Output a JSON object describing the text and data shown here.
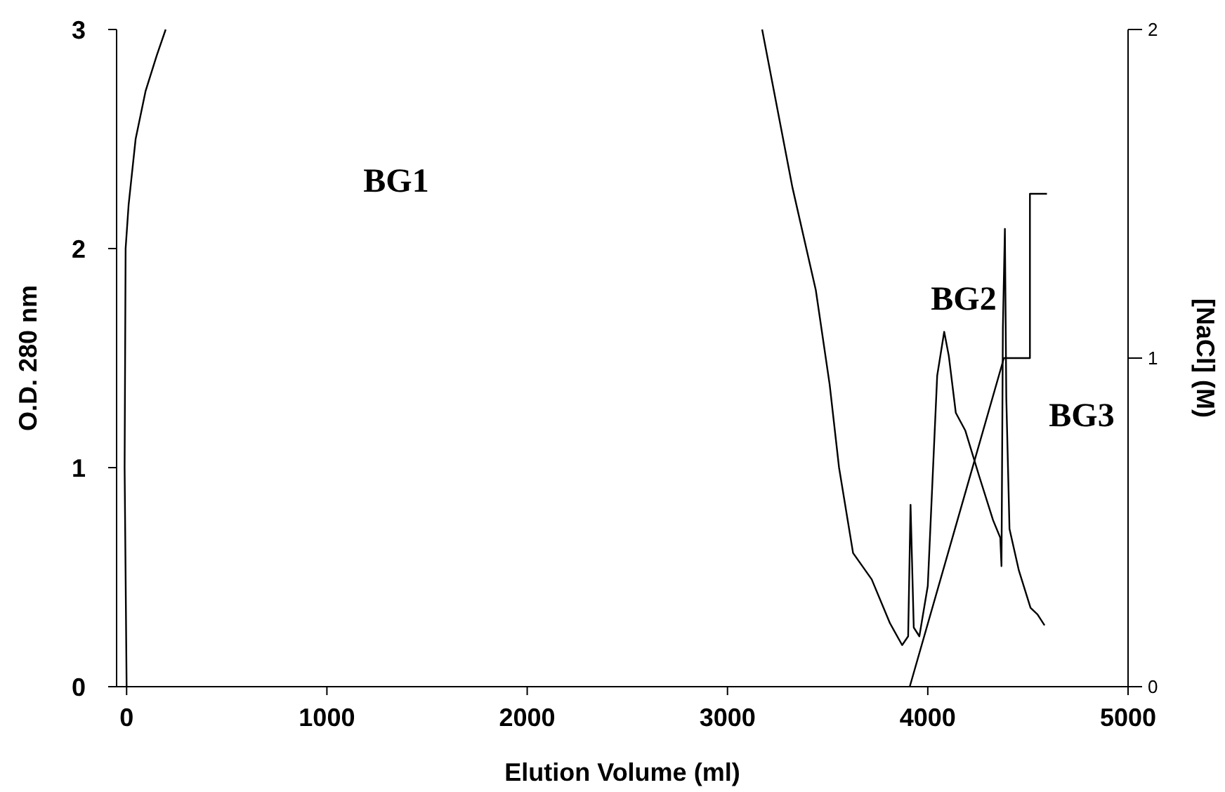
{
  "chart_data": {
    "type": "line",
    "xlabel": "Elution Volume (ml)",
    "ylabel": "O.D. 280 nm",
    "y2label": "[NaCl] (M)",
    "xlim": [
      -50,
      5000
    ],
    "xticks": [
      0,
      1000,
      2000,
      3000,
      4000,
      5000
    ],
    "ylim": [
      0,
      3
    ],
    "yticks": [
      0,
      1,
      2,
      3
    ],
    "y2lim": [
      0,
      2
    ],
    "y2ticks": [
      0,
      1,
      2
    ],
    "grid": false,
    "marker": "none",
    "line_style": "solid",
    "series": [
      {
        "color": "#000000",
        "x": [
          0,
          -10,
          -5,
          10,
          45,
          95,
          150,
          195
        ],
        "values": [
          0,
          1,
          2,
          2.2,
          2.5,
          2.72,
          2.88,
          3
        ]
      },
      {
        "color": "#000000",
        "x": [
          3173,
          3324,
          3441,
          3510,
          3557,
          3627,
          3720,
          3811,
          3872,
          3902,
          3914,
          3930,
          3958,
          4000,
          4047,
          4082,
          4105,
          4140,
          4187,
          4257,
          4326,
          4362,
          4368,
          4375,
          4385,
          4392,
          4408,
          4455,
          4513,
          4548,
          4583
        ],
        "values": [
          3,
          2.28,
          1.81,
          1.38,
          1,
          0.61,
          0.49,
          0.29,
          0.19,
          0.23,
          0.83,
          0.27,
          0.23,
          0.46,
          1.42,
          1.62,
          1.51,
          1.25,
          1.17,
          0.96,
          0.76,
          0.68,
          0.55,
          1.64,
          2.09,
          1.32,
          0.72,
          0.53,
          0.36,
          0.33,
          0.28
        ]
      },
      {
        "color": "#000000",
        "axis": "y2",
        "x": [
          3910,
          4380,
          4510,
          4510,
          4595
        ],
        "values": [
          0,
          1,
          1,
          1.5,
          1.5
        ]
      }
    ],
    "annotations": [
      "BG1",
      "BG2",
      "BG3"
    ]
  }
}
